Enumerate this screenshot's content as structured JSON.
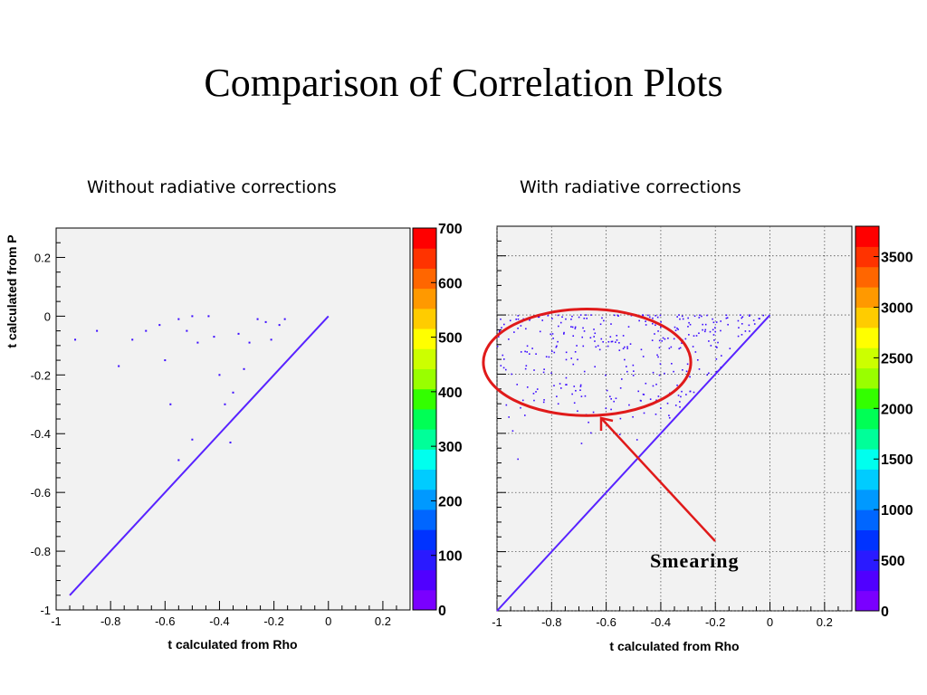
{
  "slide": {
    "title": "Comparison of Correlation Plots",
    "left_caption": "Without radiative corrections",
    "right_caption": "With radiative corrections",
    "annotation": "Smearing"
  },
  "colors": {
    "frame_bg": "#f2f2f2",
    "marker": "#3b0bff",
    "circle": "#e01a1a",
    "arrow": "#e01a1a"
  },
  "palette": [
    "#7a00ff",
    "#5000ff",
    "#2a1aff",
    "#0033ff",
    "#0066ff",
    "#0099ff",
    "#00ccff",
    "#00ffee",
    "#00ff99",
    "#00ff55",
    "#33ff00",
    "#99ff00",
    "#ccff00",
    "#ffff00",
    "#ffcc00",
    "#ff9900",
    "#ff6600",
    "#ff3300",
    "#ff0000"
  ],
  "chart_data": [
    {
      "type": "heatmap",
      "title": "",
      "xlabel": "t calculated from Rho",
      "ylabel": "t calculated from P",
      "xlim": [
        -1.0,
        0.3
      ],
      "ylim": [
        -1.0,
        0.3
      ],
      "x_ticks": [
        "-1",
        "-0.8",
        "-0.6",
        "-0.4",
        "-0.2",
        "0",
        "0.2"
      ],
      "y_ticks": [
        "-1",
        "-0.8",
        "-0.6",
        "-0.4",
        "-0.2",
        "0",
        "0.2"
      ],
      "grid": false,
      "z_range": [
        0,
        700
      ],
      "z_ticks": [
        "0",
        "100",
        "200",
        "300",
        "400",
        "500",
        "600",
        "700"
      ],
      "diagonal": {
        "from": -0.95,
        "to": 0.0
      },
      "scatter_points": [
        [
          -0.93,
          -0.08
        ],
        [
          -0.85,
          -0.05
        ],
        [
          -0.77,
          -0.17
        ],
        [
          -0.72,
          -0.08
        ],
        [
          -0.62,
          -0.03
        ],
        [
          -0.6,
          -0.15
        ],
        [
          -0.58,
          -0.3
        ],
        [
          -0.55,
          -0.01
        ],
        [
          -0.52,
          -0.05
        ],
        [
          -0.5,
          -0.0
        ],
        [
          -0.48,
          -0.09
        ],
        [
          -0.42,
          -0.07
        ],
        [
          -0.4,
          -0.2
        ],
        [
          -0.38,
          -0.3
        ],
        [
          -0.36,
          -0.43
        ],
        [
          -0.33,
          -0.06
        ],
        [
          -0.31,
          -0.18
        ],
        [
          -0.29,
          -0.09
        ],
        [
          -0.26,
          -0.01
        ],
        [
          -0.23,
          -0.02
        ],
        [
          -0.21,
          -0.08
        ],
        [
          -0.18,
          -0.03
        ],
        [
          -0.16,
          -0.01
        ],
        [
          -0.55,
          -0.49
        ],
        [
          -0.5,
          -0.42
        ],
        [
          -0.35,
          -0.26
        ],
        [
          -0.44,
          -0.0
        ],
        [
          -0.67,
          -0.05
        ]
      ]
    },
    {
      "type": "heatmap",
      "title": "",
      "xlabel": "t calculated from Rho",
      "ylabel": "",
      "xlim": [
        -1.0,
        0.3
      ],
      "ylim": [
        -1.0,
        0.3
      ],
      "x_ticks": [
        "-1",
        "-0.8",
        "-0.6",
        "-0.4",
        "-0.2",
        "0",
        "0.2"
      ],
      "y_ticks": [],
      "grid": true,
      "z_range": [
        0,
        3800
      ],
      "z_ticks": [
        "0",
        "500",
        "1000",
        "1500",
        "2000",
        "2500",
        "3000",
        "3500"
      ],
      "diagonal": {
        "from": -1.0,
        "to": 0.0
      },
      "smearing_region": {
        "x_from": -1.0,
        "x_to": 0.0,
        "y_from": -0.35,
        "y_to": 0.0
      },
      "annotation_circle": {
        "cx": -0.67,
        "cy": -0.16,
        "rx": 0.38,
        "ry": 0.18
      }
    }
  ]
}
